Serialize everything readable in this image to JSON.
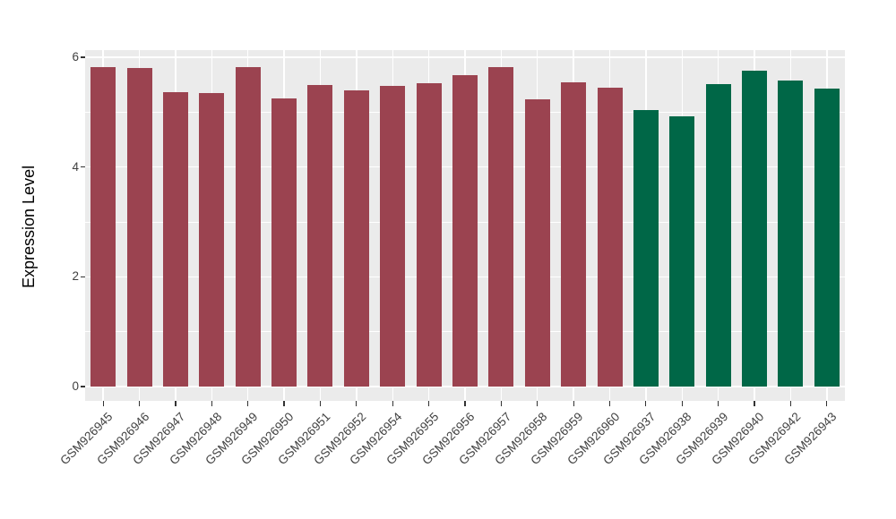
{
  "chart_data": {
    "type": "bar",
    "title": "",
    "xlabel": "",
    "ylabel": "Expression Level",
    "ylim": [
      0,
      6.15
    ],
    "yticks": [
      0,
      2,
      4,
      6
    ],
    "minor_yticks": [
      1,
      3,
      5
    ],
    "grid": "on",
    "legend": "none",
    "categories": [
      "GSM926945",
      "GSM926946",
      "GSM926947",
      "GSM926948",
      "GSM926949",
      "GSM926950",
      "GSM926951",
      "GSM926952",
      "GSM926954",
      "GSM926955",
      "GSM926956",
      "GSM926957",
      "GSM926958",
      "GSM926959",
      "GSM926960",
      "GSM926937",
      "GSM926938",
      "GSM926939",
      "GSM926940",
      "GSM926942",
      "GSM926943"
    ],
    "values": [
      5.82,
      5.81,
      5.37,
      5.35,
      5.82,
      5.25,
      5.5,
      5.4,
      5.48,
      5.53,
      5.68,
      5.82,
      5.24,
      5.55,
      5.45,
      5.04,
      4.93,
      5.51,
      5.76,
      5.58,
      5.43
    ],
    "bar_colors": [
      "#9B4350",
      "#9B4350",
      "#9B4350",
      "#9B4350",
      "#9B4350",
      "#9B4350",
      "#9B4350",
      "#9B4350",
      "#9B4350",
      "#9B4350",
      "#9B4350",
      "#9B4350",
      "#9B4350",
      "#9B4350",
      "#9B4350",
      "#006747",
      "#006747",
      "#006747",
      "#006747",
      "#006747",
      "#006747"
    ],
    "group_colors": {
      "left_group": "#9B4350",
      "right_group": "#006747"
    }
  },
  "style": {
    "panel_bg": "#EBEBEB",
    "grid_color": "#FFFFFF",
    "tick_mark_color": "#333333",
    "tick_label_color": "#404040",
    "axis_title_color": "#000000",
    "figure_bg": "#FFFFFF"
  }
}
